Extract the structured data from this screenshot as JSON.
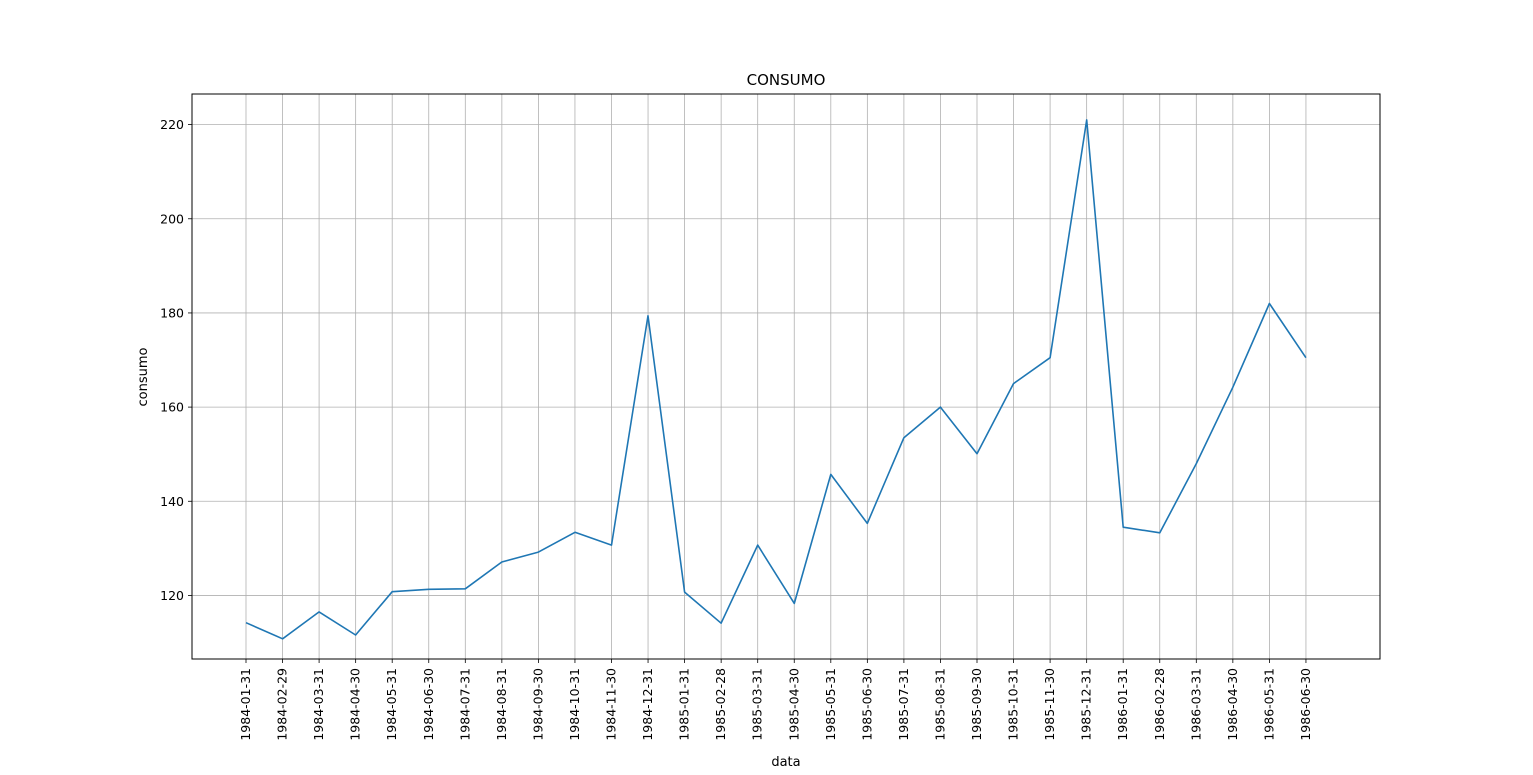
{
  "chart_data": {
    "type": "line",
    "title": "CONSUMO",
    "xlabel": "data",
    "ylabel": "consumo",
    "grid": true,
    "ylim": [
      106.5,
      226.5
    ],
    "yticks": [
      120,
      140,
      160,
      180,
      200,
      220
    ],
    "line_color": "#1f77b4",
    "grid_color": "#b0b0b0",
    "categories": [
      "1984-01-31",
      "1984-02-29",
      "1984-03-31",
      "1984-04-30",
      "1984-05-31",
      "1984-06-30",
      "1984-07-31",
      "1984-08-31",
      "1984-09-30",
      "1984-10-31",
      "1984-11-30",
      "1984-12-31",
      "1985-01-31",
      "1985-02-28",
      "1985-03-31",
      "1985-04-30",
      "1985-05-31",
      "1985-06-30",
      "1985-07-31",
      "1985-08-31",
      "1985-09-30",
      "1985-10-31",
      "1985-11-30",
      "1985-12-31",
      "1986-01-31",
      "1986-02-28",
      "1986-03-31",
      "1986-04-30",
      "1986-05-31",
      "1986-06-30"
    ],
    "values": [
      114.2,
      110.8,
      116.5,
      111.6,
      120.8,
      121.3,
      121.4,
      127.1,
      129.2,
      133.4,
      130.7,
      179.4,
      120.7,
      114.1,
      130.7,
      118.3,
      145.7,
      135.3,
      153.5,
      160.0,
      150.1,
      165.0,
      170.5,
      221.0,
      134.5,
      133.3,
      148.0,
      164.2,
      182.0,
      170.5
    ]
  }
}
